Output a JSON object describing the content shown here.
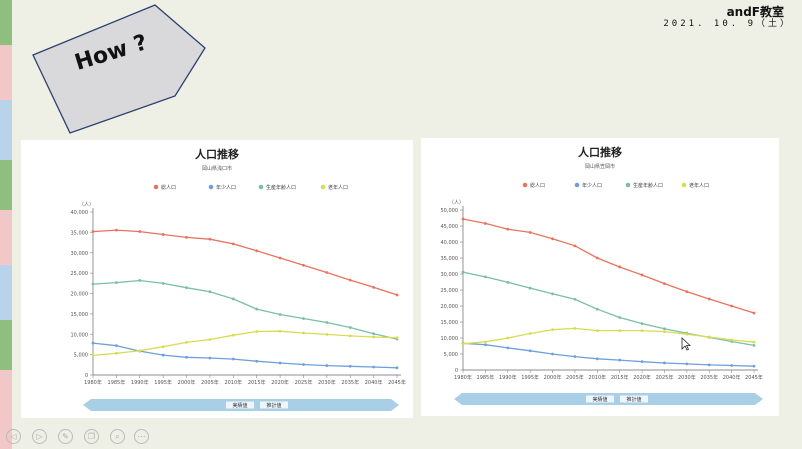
{
  "header": {
    "brand": "andF教室",
    "date": "2021. 10. 9（土）"
  },
  "tag": {
    "label": "How ?"
  },
  "toolbar": {
    "buttons": [
      "play-icon",
      "play-icon",
      "pen-icon",
      "copy-icon",
      "zoom-icon",
      "more-icon"
    ]
  },
  "colors": {
    "total": "#e8735e",
    "young": "#6f9fdc",
    "working": "#79c0a2",
    "elderly": "#d8dc52",
    "band": "#a9cfe6"
  },
  "chart_data": [
    {
      "type": "line",
      "title": "人口推移",
      "subtitle": "岡山県浅口市",
      "ylabel": "（人）",
      "ylim": [
        0,
        45000
      ],
      "yticks": [
        "0",
        "5,000",
        "10,000",
        "15,000",
        "20,000",
        "25,000",
        "30,000",
        "35,000",
        "40,000"
      ],
      "x": [
        "1980年",
        "1985年",
        "1990年",
        "1995年",
        "2000年",
        "2005年",
        "2010年",
        "2015年",
        "2020年",
        "2025年",
        "2030年",
        "2035年",
        "2040年",
        "2045年"
      ],
      "band": {
        "actual": "実績値",
        "forecast": "推計値"
      },
      "series": [
        {
          "name": "総人口",
          "values": [
            39600,
            40000,
            39600,
            38800,
            38000,
            37500,
            36200,
            34300,
            32300,
            30300,
            28300,
            26200,
            24200,
            22100
          ]
        },
        {
          "name": "年少人口",
          "values": [
            8800,
            8100,
            6600,
            5500,
            4900,
            4700,
            4400,
            3800,
            3300,
            2900,
            2600,
            2400,
            2200,
            2000
          ]
        },
        {
          "name": "生産年齢人口",
          "values": [
            25100,
            25500,
            26100,
            25300,
            24100,
            23000,
            21000,
            18200,
            16700,
            15600,
            14500,
            13100,
            11400,
            9900
          ]
        },
        {
          "name": "老年人口",
          "values": [
            5400,
            6000,
            6700,
            7800,
            9000,
            9800,
            11000,
            12000,
            12100,
            11600,
            11200,
            10800,
            10500,
            10300
          ]
        }
      ]
    },
    {
      "type": "line",
      "title": "人口推移",
      "subtitle": "岡山県笠岡市",
      "ylabel": "（人）",
      "ylim": [
        0,
        50000
      ],
      "yticks": [
        "0",
        "5,000",
        "10,000",
        "15,000",
        "20,000",
        "25,000",
        "30,000",
        "35,000",
        "40,000",
        "45,000",
        "50,000"
      ],
      "x": [
        "1980年",
        "1985年",
        "1990年",
        "1995年",
        "2000年",
        "2005年",
        "2010年",
        "2015年",
        "2020年",
        "2025年",
        "2030年",
        "2035年",
        "2040年",
        "2045年"
      ],
      "band": {
        "actual": "実績値",
        "forecast": "推計値"
      },
      "series": [
        {
          "name": "総人口",
          "values": [
            47200,
            45800,
            44000,
            43000,
            41000,
            38800,
            35000,
            32200,
            29700,
            27000,
            24500,
            22200,
            20000,
            17800
          ]
        },
        {
          "name": "年少人口",
          "values": [
            8300,
            7900,
            6900,
            6000,
            5000,
            4200,
            3500,
            3100,
            2600,
            2200,
            1900,
            1600,
            1400,
            1200
          ]
        },
        {
          "name": "生産年齢人口",
          "values": [
            30600,
            29100,
            27400,
            25600,
            23800,
            22100,
            19000,
            16400,
            14500,
            12900,
            11500,
            10200,
            8900,
            7700
          ]
        },
        {
          "name": "老年人口",
          "values": [
            8200,
            8800,
            10000,
            11400,
            12600,
            13000,
            12300,
            12300,
            12300,
            12000,
            11200,
            10300,
            9400,
            8700
          ]
        }
      ]
    }
  ]
}
